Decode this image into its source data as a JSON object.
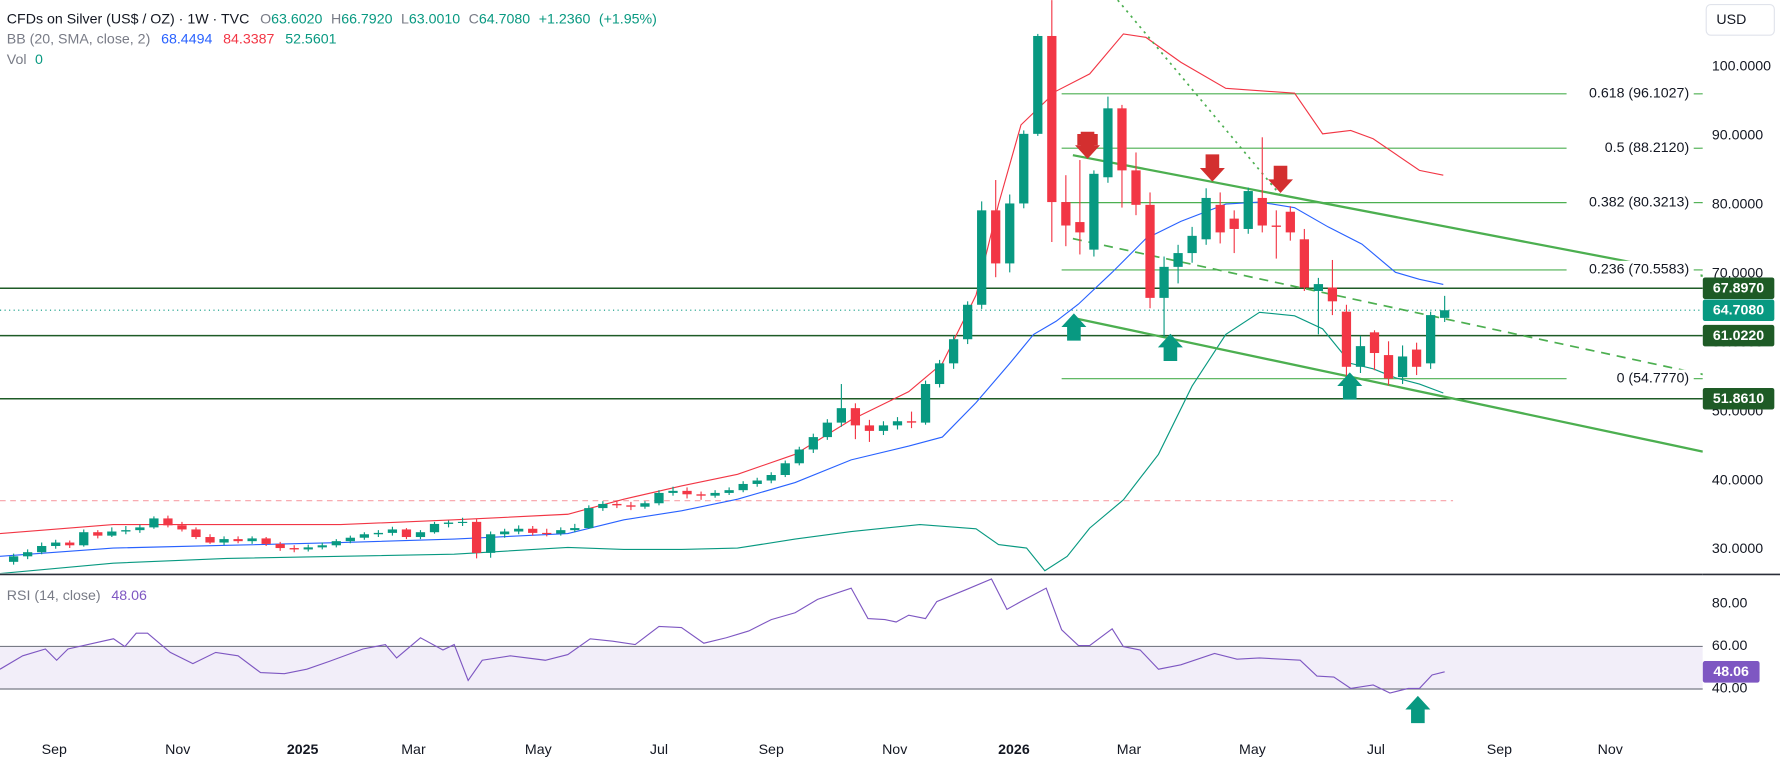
{
  "chart_data": [
    {
      "type": "candlestick",
      "title": "CFDs on Silver (US$ / OZ) · 1W · TVC",
      "ohlc": [
        {
          "name": "O",
          "value": 63.602,
          "label": "63.6020"
        },
        {
          "name": "H",
          "value": 66.792,
          "label": "66.7920"
        },
        {
          "name": "L",
          "value": 63.001,
          "label": "63.0010"
        },
        {
          "name": "C",
          "value": 64.708,
          "label": "64.7080"
        }
      ],
      "change": {
        "value": 1.236,
        "label": "+1.2360"
      },
      "change_pct": {
        "value": 1.95,
        "label": "(+1.95%)"
      },
      "bb_title": "BB (20, SMA, close, 2)",
      "vol_title": "Vol",
      "vol_value": 0,
      "currency": "USD",
      "up_color": "#089981",
      "down_color": "#f23645",
      "xlim": [
        -0.97,
        120.4
      ],
      "xticks": [
        {
          "value": 2.9,
          "label": "Sep"
        },
        {
          "value": 11.7,
          "label": "Nov"
        },
        {
          "value": 20.6,
          "label": "2025"
        },
        {
          "value": 28.5,
          "label": "Mar"
        },
        {
          "value": 37.4,
          "label": "May"
        },
        {
          "value": 46.0,
          "label": "Jul"
        },
        {
          "value": 54.0,
          "label": "Sep"
        },
        {
          "value": 62.8,
          "label": "Nov"
        },
        {
          "value": 71.3,
          "label": "2026"
        },
        {
          "value": 79.5,
          "label": "Mar"
        },
        {
          "value": 88.3,
          "label": "May"
        },
        {
          "value": 97.1,
          "label": "Jul"
        },
        {
          "value": 105.9,
          "label": "Sep"
        },
        {
          "value": 113.8,
          "label": "Nov"
        }
      ],
      "ylim": [
        26.54,
        109.72
      ],
      "yticks": [
        {
          "value": 30,
          "label": "30.0000"
        },
        {
          "value": 40,
          "label": "40.0000"
        },
        {
          "value": 50,
          "label": "50.0000"
        },
        {
          "value": 60,
          "label": "60.0000"
        },
        {
          "value": 70,
          "label": "70.0000"
        },
        {
          "value": 80,
          "label": "80.0000"
        },
        {
          "value": 90,
          "label": "90.0000"
        },
        {
          "value": 100,
          "label": "100.0000"
        }
      ],
      "grid": false,
      "candles": [
        [
          28.2,
          29.4,
          27.8,
          29.0
        ],
        [
          29.0,
          30.0,
          28.6,
          29.6
        ],
        [
          29.6,
          31.0,
          29.3,
          30.5
        ],
        [
          30.5,
          31.4,
          30.1,
          31.0
        ],
        [
          31.0,
          31.3,
          30.2,
          30.6
        ],
        [
          30.6,
          32.9,
          30.4,
          32.5
        ],
        [
          32.5,
          32.8,
          31.6,
          32.0
        ],
        [
          32.0,
          33.2,
          31.8,
          32.6
        ],
        [
          32.6,
          33.4,
          32.2,
          32.8
        ],
        [
          32.8,
          33.6,
          32.4,
          33.2
        ],
        [
          33.2,
          34.8,
          33.0,
          34.5
        ],
        [
          34.5,
          34.9,
          33.2,
          33.5
        ],
        [
          33.5,
          34.0,
          32.6,
          32.9
        ],
        [
          32.9,
          33.2,
          31.5,
          31.8
        ],
        [
          31.8,
          32.2,
          30.8,
          31.0
        ],
        [
          31.0,
          31.9,
          30.6,
          31.5
        ],
        [
          31.5,
          31.9,
          30.9,
          31.2
        ],
        [
          31.2,
          31.9,
          30.8,
          31.6
        ],
        [
          31.6,
          31.8,
          30.5,
          30.8
        ],
        [
          30.8,
          31.1,
          29.8,
          30.2
        ],
        [
          30.2,
          30.6,
          29.6,
          30.0
        ],
        [
          30.0,
          30.7,
          29.7,
          30.3
        ],
        [
          30.3,
          31.0,
          30.0,
          30.6
        ],
        [
          30.6,
          31.5,
          30.3,
          31.2
        ],
        [
          31.2,
          32.0,
          30.9,
          31.7
        ],
        [
          31.7,
          32.5,
          31.4,
          32.2
        ],
        [
          32.2,
          32.8,
          31.8,
          32.4
        ],
        [
          32.4,
          33.3,
          32.0,
          32.9
        ],
        [
          32.9,
          33.1,
          31.5,
          31.8
        ],
        [
          31.8,
          32.8,
          31.5,
          32.5
        ],
        [
          32.5,
          34.0,
          32.3,
          33.7
        ],
        [
          33.7,
          34.2,
          33.2,
          33.9
        ],
        [
          33.9,
          34.6,
          33.4,
          34.0
        ],
        [
          34.0,
          34.4,
          28.7,
          29.5
        ],
        [
          29.5,
          32.6,
          28.8,
          32.2
        ],
        [
          32.2,
          33.0,
          31.7,
          32.6
        ],
        [
          32.6,
          33.5,
          32.2,
          33.0
        ],
        [
          33.0,
          33.4,
          32.0,
          32.4
        ],
        [
          32.4,
          33.0,
          31.9,
          32.3
        ],
        [
          32.3,
          33.2,
          32.0,
          32.8
        ],
        [
          32.8,
          33.7,
          32.5,
          33.1
        ],
        [
          33.1,
          36.4,
          33.0,
          36.0
        ],
        [
          36.0,
          37.0,
          35.6,
          36.6
        ],
        [
          36.6,
          37.1,
          36.0,
          36.4
        ],
        [
          36.4,
          36.9,
          35.7,
          36.2
        ],
        [
          36.2,
          37.0,
          35.9,
          36.7
        ],
        [
          36.7,
          38.6,
          36.4,
          38.2
        ],
        [
          38.2,
          39.1,
          37.8,
          38.5
        ],
        [
          38.5,
          39.0,
          37.4,
          38.0
        ],
        [
          38.0,
          38.4,
          37.2,
          37.8
        ],
        [
          37.8,
          38.6,
          37.5,
          38.2
        ],
        [
          38.2,
          39.0,
          37.9,
          38.6
        ],
        [
          38.6,
          39.9,
          38.3,
          39.5
        ],
        [
          39.5,
          40.4,
          39.1,
          40.0
        ],
        [
          40.0,
          41.2,
          39.6,
          40.8
        ],
        [
          40.8,
          42.9,
          40.5,
          42.5
        ],
        [
          42.5,
          44.9,
          42.2,
          44.5
        ],
        [
          44.5,
          46.8,
          44.0,
          46.3
        ],
        [
          46.3,
          48.9,
          45.9,
          48.4
        ],
        [
          48.4,
          54.0,
          47.8,
          50.5
        ],
        [
          50.5,
          51.2,
          46.0,
          48.0
        ],
        [
          48.0,
          48.8,
          45.6,
          47.2
        ],
        [
          47.2,
          48.6,
          46.6,
          48.0
        ],
        [
          48.0,
          49.2,
          47.4,
          48.6
        ],
        [
          48.6,
          50.0,
          47.6,
          48.4
        ],
        [
          48.4,
          54.5,
          48.1,
          54.0
        ],
        [
          54.0,
          57.5,
          53.5,
          57.0
        ],
        [
          57.0,
          61.0,
          56.2,
          60.5
        ],
        [
          60.5,
          66.0,
          59.8,
          65.5
        ],
        [
          65.5,
          80.5,
          64.9,
          79.2
        ],
        [
          79.2,
          83.6,
          69.5,
          71.5
        ],
        [
          71.5,
          81.5,
          70.2,
          80.2
        ],
        [
          80.2,
          90.8,
          79.5,
          90.3
        ],
        [
          90.3,
          104.8,
          90.0,
          104.5
        ],
        [
          104.5,
          109.7,
          74.6,
          80.4
        ],
        [
          80.4,
          84.3,
          74.0,
          77.0
        ],
        [
          77.5,
          86.5,
          72.8,
          76.0
        ],
        [
          73.5,
          85.0,
          72.5,
          84.5
        ],
        [
          84.0,
          95.7,
          83.2,
          94.0
        ],
        [
          94.0,
          94.5,
          79.6,
          85.0
        ],
        [
          85.0,
          87.6,
          78.5,
          80.0
        ],
        [
          80.0,
          81.8,
          65.0,
          66.5
        ],
        [
          66.5,
          72.5,
          60.8,
          71.0
        ],
        [
          71.0,
          74.2,
          68.6,
          73.0
        ],
        [
          73.0,
          76.8,
          71.6,
          75.5
        ],
        [
          75.0,
          82.4,
          74.2,
          81.0
        ],
        [
          80.0,
          81.8,
          74.4,
          76.0
        ],
        [
          78.0,
          79.2,
          73.0,
          76.5
        ],
        [
          76.5,
          82.5,
          75.8,
          82.0
        ],
        [
          81.0,
          89.8,
          76.0,
          77.0
        ],
        [
          77.0,
          79.2,
          72.2,
          76.8
        ],
        [
          79.0,
          79.8,
          74.8,
          76.0
        ],
        [
          75.0,
          76.5,
          67.5,
          68.0
        ],
        [
          67.5,
          69.4,
          61.2,
          68.5
        ],
        [
          68.0,
          72.0,
          64.0,
          66.0
        ],
        [
          64.5,
          65.5,
          54.6,
          56.5
        ],
        [
          56.5,
          61.0,
          55.6,
          59.5
        ],
        [
          61.5,
          61.8,
          56.0,
          58.5
        ],
        [
          58.2,
          60.2,
          53.8,
          54.8
        ],
        [
          55.0,
          59.6,
          54.0,
          58.0
        ],
        [
          59.0,
          60.0,
          55.3,
          56.5
        ],
        [
          57.0,
          64.5,
          56.2,
          64.0
        ],
        [
          63.602,
          66.792,
          63.001,
          64.708
        ]
      ],
      "bands": [
        {
          "color": "#2962ff",
          "legend_value": 68.4494,
          "x": [
            -0.97,
            7.1,
            15.2,
            23.3,
            31.4,
            39.5,
            43.5,
            47.6,
            51.6,
            55.7,
            59.7,
            63.8,
            66.2,
            68.6,
            71.0,
            72.7,
            74.3,
            75.9,
            78.3,
            80.7,
            83.2,
            86.4,
            88.8,
            91.3,
            93.7,
            96.1,
            98.5,
            100.2,
            101.9
          ],
          "values": [
            29.0,
            30.2,
            30.6,
            31.0,
            31.5,
            32.3,
            34.3,
            35.6,
            37.3,
            39.7,
            43.0,
            45.0,
            46.3,
            51.3,
            57.0,
            61.2,
            63.1,
            65.6,
            70.2,
            75.1,
            77.6,
            80.1,
            80.4,
            79.6,
            76.8,
            74.3,
            70.2,
            69.2,
            68.45
          ]
        },
        {
          "color": "#f23645",
          "legend_value": 84.3387,
          "x": [
            -0.97,
            7.1,
            15.2,
            23.3,
            31.4,
            39.5,
            43.5,
            47.6,
            51.6,
            55.7,
            59.7,
            63.8,
            66.2,
            68.6,
            70.2,
            71.8,
            74.3,
            76.7,
            79.1,
            80.7,
            83.2,
            86.4,
            91.3,
            93.3,
            95.3,
            96.9,
            100.2,
            101.9
          ],
          "values": [
            32.3,
            33.6,
            33.6,
            33.6,
            34.3,
            35.1,
            37.3,
            39.2,
            40.9,
            43.8,
            48.8,
            52.9,
            57.0,
            66.9,
            80.1,
            91.6,
            96.5,
            99.0,
            104.8,
            104.3,
            100.7,
            96.9,
            96.2,
            90.3,
            90.8,
            89.6,
            85.0,
            84.3
          ]
        },
        {
          "color": "#089981",
          "legend_value": 52.5601,
          "x": [
            -0.97,
            7.1,
            15.2,
            23.3,
            31.4,
            39.5,
            43.5,
            47.6,
            51.6,
            55.7,
            59.7,
            64.6,
            68.6,
            70.2,
            72.2,
            73.5,
            75.1,
            76.7,
            79.1,
            81.6,
            84.0,
            86.4,
            88.8,
            91.3,
            93.3,
            95.3,
            96.9,
            98.5,
            100.2,
            101.9
          ],
          "values": [
            26.5,
            28.0,
            28.7,
            29.0,
            29.3,
            30.3,
            30.0,
            30.0,
            30.2,
            31.5,
            32.6,
            33.6,
            33.0,
            30.7,
            30.2,
            26.9,
            29.0,
            33.1,
            37.2,
            43.8,
            53.7,
            61.2,
            64.4,
            63.9,
            62.0,
            57.0,
            56.2,
            54.9,
            54.0,
            52.7
          ]
        }
      ],
      "levels": [
        {
          "value": 67.897,
          "label": "67.8970"
        },
        {
          "value": 61.022,
          "label": "61.0220"
        },
        {
          "value": 51.861,
          "label": "51.8610"
        }
      ],
      "level_color": "#1e5b26",
      "last_price": {
        "value": 64.708,
        "label": "64.7080"
      },
      "reference_line": 37.07,
      "fibonacci": {
        "x": 74.7,
        "color": "#4caf50",
        "levels": [
          {
            "value": 96.1027,
            "label": "0.618 (96.1027)"
          },
          {
            "value": 88.212,
            "label": "0.5 (88.2120)"
          },
          {
            "value": 80.3213,
            "label": "0.382 (80.3213)"
          },
          {
            "value": 70.5583,
            "label": "0.236 (70.5583)"
          },
          {
            "value": 54.777,
            "label": "0 (54.7770)"
          }
        ]
      },
      "trendlines": [
        {
          "style": "solid",
          "color": "#4caf50",
          "x": [
            75.5,
            120.4
          ],
          "values": [
            87.2,
            69.7
          ]
        },
        {
          "style": "solid",
          "color": "#4caf50",
          "x": [
            75.5,
            120.4
          ],
          "values": [
            63.6,
            44.2
          ]
        },
        {
          "style": "dashed",
          "color": "#4caf50",
          "x": [
            75.5,
            120.4
          ],
          "values": [
            75.1,
            55.4
          ]
        },
        {
          "style": "dotted",
          "color": "#4caf50",
          "x": [
            78.7,
            90.5
          ],
          "values": [
            109.7,
            80.9
          ]
        }
      ]
    },
    {
      "type": "line",
      "title": "RSI (14, close)",
      "value": 48.06,
      "color": "#7e57c2",
      "ylim": [
        19.7,
        93.3
      ],
      "yticks": [
        {
          "value": 80,
          "label": "80.00"
        },
        {
          "value": 60,
          "label": "60.00"
        },
        {
          "value": 40,
          "label": "40.00"
        }
      ],
      "band": [
        40,
        60
      ],
      "x": [
        -0.97,
        0.65,
        2.27,
        3.07,
        3.88,
        7.12,
        7.93,
        8.74,
        9.55,
        11.17,
        12.78,
        14.4,
        16.0,
        17.6,
        19.3,
        20.9,
        22.5,
        24.9,
        26.5,
        27.3,
        29.0,
        30.6,
        31.4,
        32.4,
        33.4,
        35.4,
        37.9,
        39.5,
        41.1,
        42.7,
        44.3,
        46.0,
        47.6,
        49.2,
        50.8,
        52.4,
        54.0,
        55.7,
        57.3,
        59.7,
        60.9,
        62.1,
        62.9,
        63.8,
        65.0,
        65.8,
        67.8,
        69.7,
        70.8,
        71.8,
        73.6,
        74.7,
        75.9,
        76.7,
        78.3,
        79.1,
        80.3,
        81.6,
        83.2,
        85.6,
        87.2,
        88.8,
        91.7,
        92.9,
        94.1,
        95.3,
        96.9,
        98.1,
        99.4,
        100.2,
        101.1,
        102.0
      ],
      "values": [
        49.3,
        55.6,
        58.8,
        53.5,
        58.8,
        63.6,
        59.9,
        66.2,
        66.2,
        57.2,
        51.9,
        57.2,
        55.6,
        47.7,
        47.2,
        49.3,
        53.0,
        58.8,
        60.9,
        54.6,
        64.1,
        58.3,
        60.9,
        44.0,
        53.5,
        55.6,
        53.5,
        56.2,
        63.6,
        62.5,
        60.9,
        69.4,
        68.9,
        61.5,
        64.1,
        67.3,
        72.6,
        75.8,
        82.1,
        87.4,
        73.1,
        72.6,
        71.5,
        74.7,
        73.1,
        81.1,
        86.4,
        91.7,
        77.4,
        81.1,
        87.4,
        67.8,
        60.4,
        60.4,
        68.3,
        59.9,
        58.3,
        49.3,
        51.4,
        56.7,
        54.0,
        54.6,
        53.5,
        46.1,
        45.6,
        40.3,
        41.9,
        38.1,
        40.3,
        40.3,
        46.6,
        48.06
      ]
    }
  ]
}
